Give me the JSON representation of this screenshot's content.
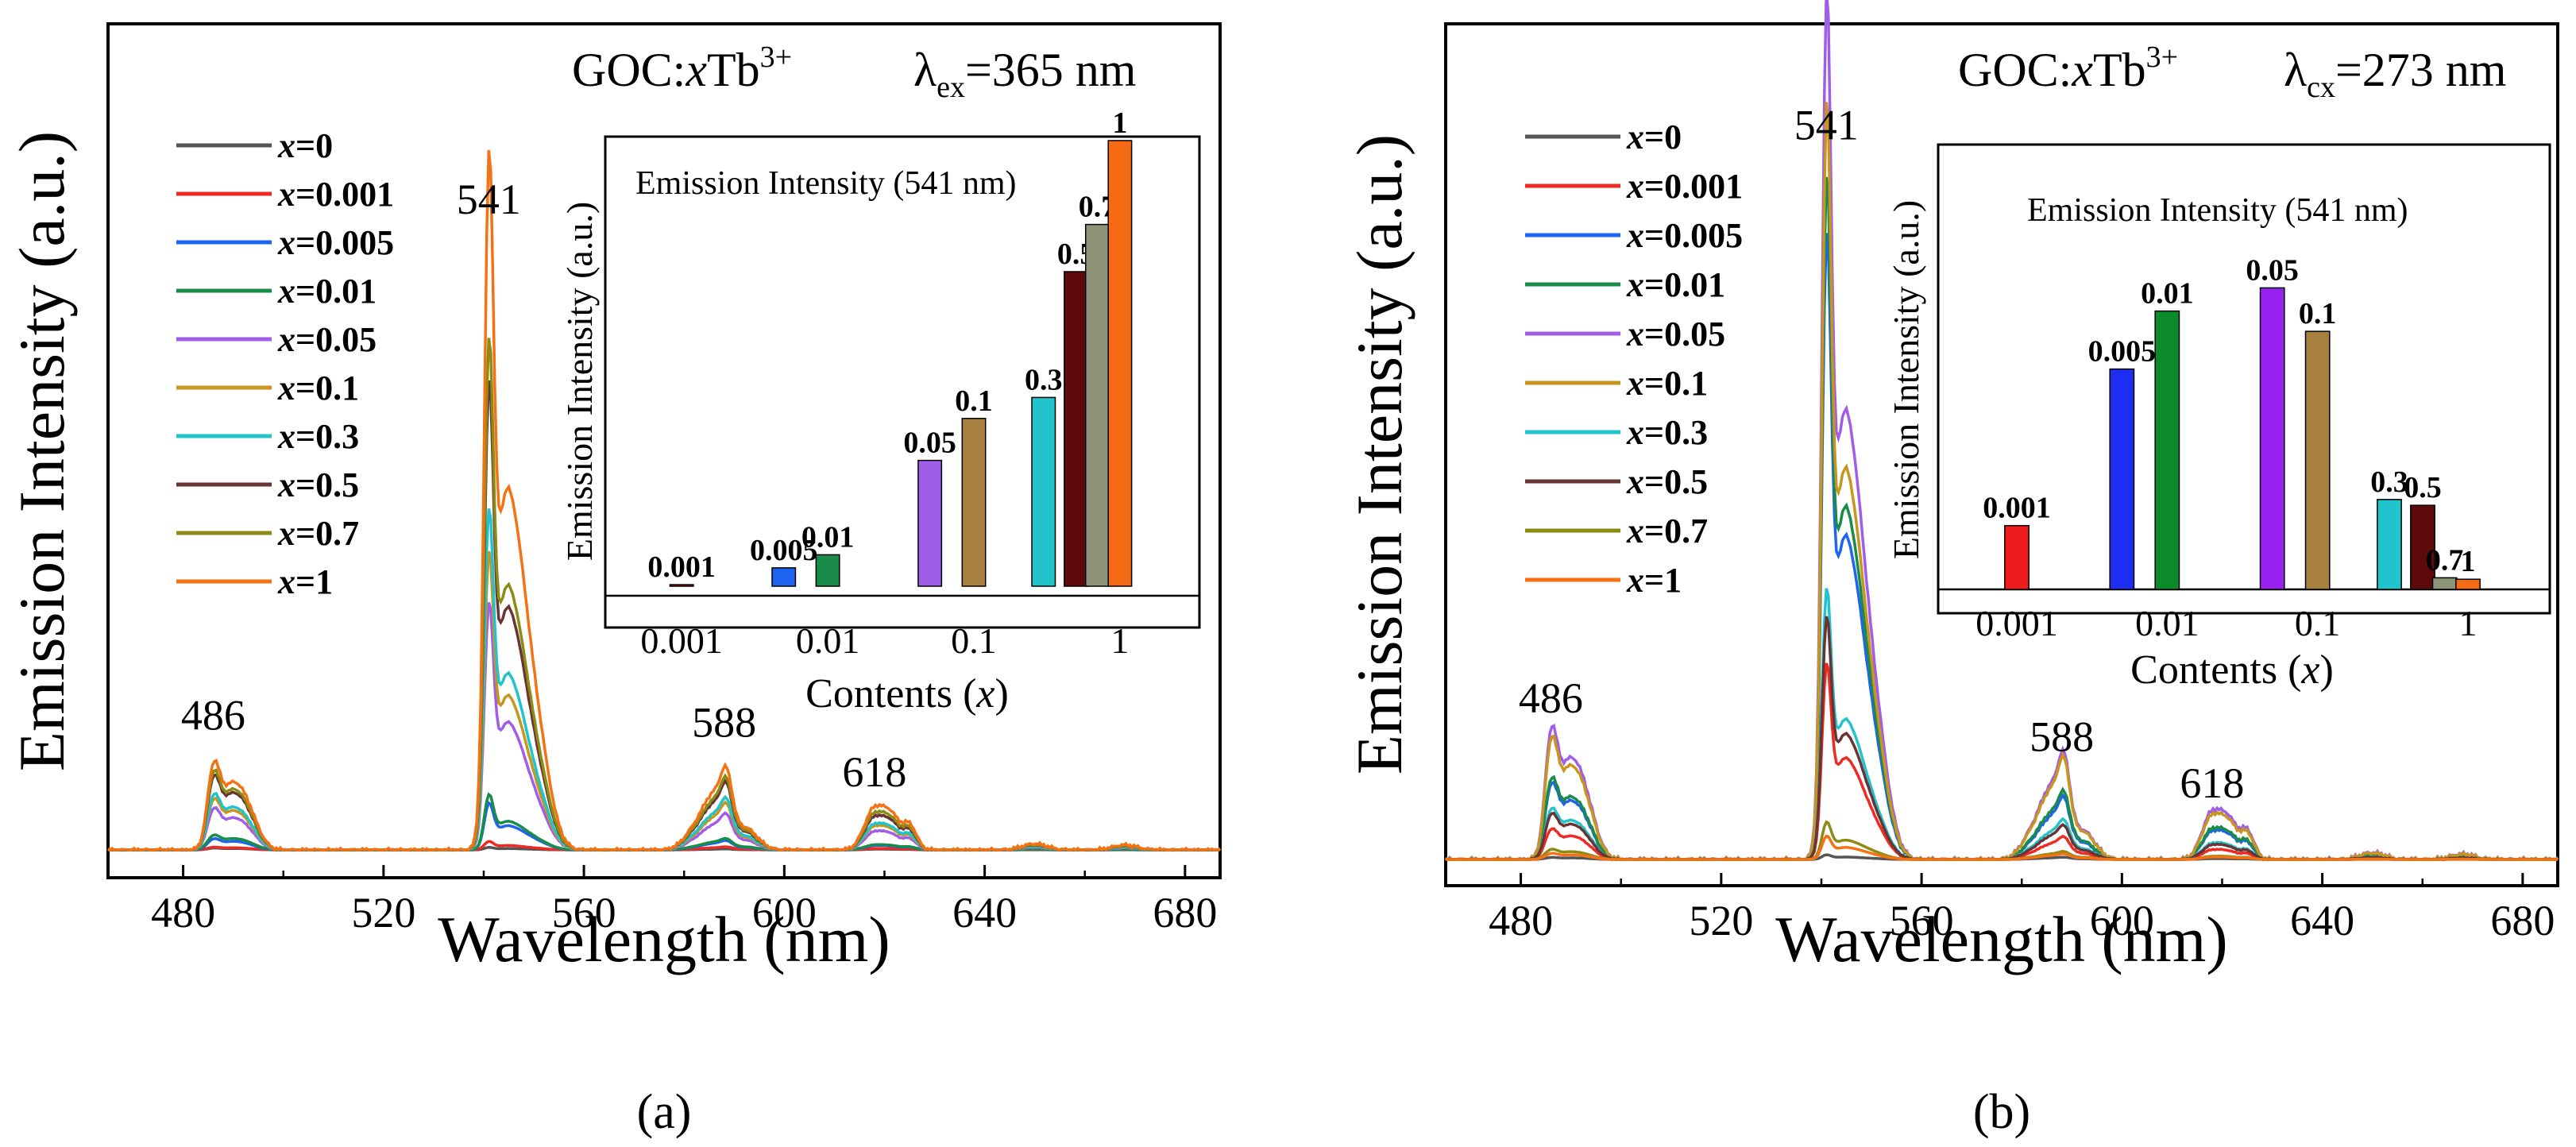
{
  "colors": {
    "x=0": "#555555",
    "x=0.001": "#ee2a24",
    "x=0.005": "#1e64f0",
    "x=0.01": "#1a8c4a",
    "x=0.05": "#a05ee8",
    "x=0.1": "#c8961e",
    "x=0.3": "#22c4cc",
    "x=0.5": "#6b3434",
    "x=0.7": "#8c8c14",
    "x=1": "#f57214"
  },
  "chart_data": [
    {
      "type": "line",
      "panel_label": "(a)",
      "title": "GOC:xTb3+ λex=365 nm",
      "title_parts": {
        "host": "GOC:",
        "x": "x",
        "ion": "Tb",
        "sup": "3+",
        "lambda": "λ",
        "lambda_sub": "ex",
        "value": "=365 nm"
      },
      "xlabel": "Wavelength (nm)",
      "ylabel": "Emission Intensity (a.u.)",
      "xlim": [
        465,
        687
      ],
      "ylim": [
        0,
        100
      ],
      "xticks": [
        480,
        520,
        560,
        600,
        640,
        680
      ],
      "peak_labels": [
        {
          "text": "486",
          "x": 486,
          "y": 17
        },
        {
          "text": "541",
          "x": 541,
          "y": 90
        },
        {
          "text": "588",
          "x": 588,
          "y": 16
        },
        {
          "text": "618",
          "x": 618,
          "y": 9
        }
      ],
      "legend": [
        "x=0",
        "x=0.001",
        "x=0.005",
        "x=0.01",
        "x=0.05",
        "x=0.1",
        "x=0.3",
        "x=0.5",
        "x=0.7",
        "x=1"
      ],
      "series": [
        {
          "name": "x=0",
          "peak_541": 0.3,
          "peaks": [
            0.2,
            0.3,
            0.1,
            0.1
          ]
        },
        {
          "name": "x=0.001",
          "peak_541": 1.0,
          "peaks": [
            0.3,
            1.0,
            0.3,
            0.2
          ]
        },
        {
          "name": "x=0.005",
          "peak_541": 5.5,
          "peaks": [
            1.2,
            5.5,
            0.9,
            0.6
          ]
        },
        {
          "name": "x=0.01",
          "peak_541": 6.5,
          "peaks": [
            1.6,
            6.5,
            1.1,
            0.7
          ]
        },
        {
          "name": "x=0.05",
          "peak_541": 29,
          "peaks": [
            4.5,
            29,
            3.5,
            2.5
          ]
        },
        {
          "name": "x=0.1",
          "peak_541": 35,
          "peaks": [
            5.5,
            35,
            4.5,
            3.2
          ]
        },
        {
          "name": "x=0.3",
          "peak_541": 40,
          "peaks": [
            6.0,
            40,
            5.0,
            3.5
          ]
        },
        {
          "name": "x=0.5",
          "peak_541": 55,
          "peaks": [
            8.0,
            55,
            6.5,
            4.5
          ]
        },
        {
          "name": "x=0.7",
          "peak_541": 60,
          "peaks": [
            8.5,
            60,
            7.0,
            5.0
          ]
        },
        {
          "name": "x=1",
          "peak_541": 82,
          "peaks": [
            9.5,
            82,
            8.0,
            5.8
          ]
        }
      ],
      "inset": {
        "type": "bar",
        "title": "Emission Intensity (541 nm)",
        "xlabel": "Contents (x)",
        "ylabel": "Emission Intensity (a.u.)",
        "xscale": "log",
        "xticks": [
          "0.001",
          "0.01",
          "0.1",
          "1"
        ],
        "xlim": [
          0.0003,
          3.5
        ],
        "ylim": [
          -2,
          100
        ],
        "bars": [
          {
            "label": "0.001",
            "x": 0.001,
            "value": 0.3,
            "color": "#ee2a24"
          },
          {
            "label": "0.005",
            "x": 0.005,
            "value": 3.5,
            "color": "#1e64f0"
          },
          {
            "label": "0.01",
            "x": 0.01,
            "value": 6,
            "color": "#1a8c4a"
          },
          {
            "label": "0.05",
            "x": 0.05,
            "value": 24,
            "color": "#a05ee8"
          },
          {
            "label": "0.1",
            "x": 0.1,
            "value": 32,
            "color": "#a88040"
          },
          {
            "label": "0.3",
            "x": 0.3,
            "value": 36,
            "color": "#22c4cc"
          },
          {
            "label": "0.5",
            "x": 0.5,
            "value": 60,
            "color": "#5c0a0a"
          },
          {
            "label": "0.7",
            "x": 0.7,
            "value": 69,
            "color": "#8e9478"
          },
          {
            "label": "1",
            "x": 1,
            "value": 85,
            "color": "#f56a14"
          }
        ]
      }
    },
    {
      "type": "line",
      "panel_label": "(b)",
      "title": "GOC:xTb3+ λcx=273 nm",
      "title_parts": {
        "host": "GOC:",
        "x": "x",
        "ion": "Tb",
        "sup": "3+",
        "lambda": "λ",
        "lambda_sub": "cx",
        "value": "=273 nm"
      },
      "xlabel": "Wavelength (nm)",
      "ylabel": "Emission Intensity (a.u.)",
      "xlim": [
        465,
        687
      ],
      "ylim": [
        0,
        100
      ],
      "xticks": [
        480,
        520,
        560,
        600,
        640,
        680
      ],
      "peak_labels": [
        {
          "text": "486",
          "x": 486,
          "y": 19
        },
        {
          "text": "541",
          "x": 541,
          "y": 93
        },
        {
          "text": "588",
          "x": 588,
          "y": 14
        },
        {
          "text": "618",
          "x": 618,
          "y": 8
        }
      ],
      "legend": [
        "x=0",
        "x=0.001",
        "x=0.005",
        "x=0.01",
        "x=0.05",
        "x=0.1",
        "x=0.3",
        "x=0.5",
        "x=0.7",
        "x=1"
      ],
      "series": [
        {
          "name": "x=0",
          "peak_541": 0.5,
          "peaks": [
            0.2,
            0.5,
            0.2,
            0.1
          ]
        },
        {
          "name": "x=0.001",
          "peak_541": 21,
          "peaks": [
            3.0,
            21,
            2.0,
            1.2
          ]
        },
        {
          "name": "x=0.005",
          "peak_541": 67,
          "peaks": [
            7.5,
            67,
            5.5,
            3.5
          ]
        },
        {
          "name": "x=0.01",
          "peak_541": 73,
          "peaks": [
            8.0,
            73,
            6.0,
            3.8
          ]
        },
        {
          "name": "x=0.05",
          "peak_541": 93,
          "peaks": [
            13,
            93,
            9.5,
            6.0
          ]
        },
        {
          "name": "x=0.1",
          "peak_541": 81,
          "peaks": [
            12,
            81,
            9.0,
            5.5
          ]
        },
        {
          "name": "x=0.3",
          "peak_541": 29,
          "peaks": [
            5.0,
            29,
            3.5,
            2.0
          ]
        },
        {
          "name": "x=0.5",
          "peak_541": 26,
          "peaks": [
            4.5,
            26,
            3.0,
            1.8
          ]
        },
        {
          "name": "x=0.7",
          "peak_541": 4,
          "peaks": [
            1.0,
            4,
            0.7,
            0.4
          ]
        },
        {
          "name": "x=1",
          "peak_541": 2.5,
          "peaks": [
            0.6,
            2.5,
            0.5,
            0.3
          ]
        }
      ],
      "inset": {
        "type": "bar",
        "title": "Emission Intensity (541 nm)",
        "xlabel": "Contents (x)",
        "ylabel": "Emission Intensity (a.u.)",
        "xscale": "log",
        "xticks": [
          "0.001",
          "0.01",
          "0.1",
          "1"
        ],
        "xlim": [
          0.0003,
          3.5
        ],
        "ylim": [
          0,
          100
        ],
        "bars": [
          {
            "label": "0.001",
            "x": 0.001,
            "value": 22,
            "color": "#ee1c1c"
          },
          {
            "label": "0.005",
            "x": 0.005,
            "value": 76,
            "color": "#1e2ef0"
          },
          {
            "label": "0.01",
            "x": 0.01,
            "value": 96,
            "color": "#0a8a28"
          },
          {
            "label": "0.05",
            "x": 0.05,
            "value": 104,
            "color": "#9a22f0"
          },
          {
            "label": "0.1",
            "x": 0.1,
            "value": 89,
            "color": "#a88040"
          },
          {
            "label": "0.3",
            "x": 0.3,
            "value": 31,
            "color": "#22c4cc"
          },
          {
            "label": "0.5",
            "x": 0.5,
            "value": 29,
            "color": "#5c0a0a"
          },
          {
            "label": "0.7",
            "x": 0.7,
            "value": 4,
            "color": "#8e9478"
          },
          {
            "label": "1",
            "x": 1,
            "value": 3.5,
            "color": "#f56a14"
          }
        ]
      }
    }
  ]
}
